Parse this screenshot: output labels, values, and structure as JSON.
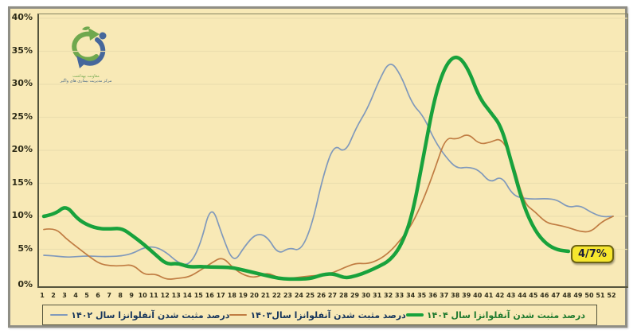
{
  "annotation": {
    "text": "4/7%",
    "bg": "#f6e62e",
    "border": "#6d6414",
    "text_color": "#1b1b38"
  },
  "logo": {
    "line1": "معاونت بهداشت",
    "line2": "مرکز مدیریت بیماری های واگیر",
    "green": "#6fa84e",
    "blue": "#46679b"
  },
  "legend": [
    {
      "label": "درصد مثبت شدن آنفلوانزا سال ۱۴۰۴",
      "color": "#18a23c",
      "text_color": "#1f7a2e",
      "thickness": 4
    },
    {
      "label": "درصد مثبت شدن آنفلوانزا سال۱۴۰۳",
      "color": "#c07c42",
      "text_color": "#17365c",
      "thickness": 2
    },
    {
      "label": "درصد مثبت شدن آنفلوانزا سال ۱۴۰۲",
      "color": "#8099bb",
      "text_color": "#17365c",
      "thickness": 2
    }
  ],
  "chart_data": {
    "type": "line",
    "title": "",
    "xlabel": "",
    "ylabel": "",
    "ylim": [
      0,
      40
    ],
    "grid": true,
    "grid_color": "#ecdfae",
    "background": "#f8e9b6",
    "legend_position": "bottom",
    "y_ticks": [
      "0%",
      "5%",
      "10%",
      "15%",
      "20%",
      "25%",
      "30%",
      "35%",
      "40%"
    ],
    "x_ticks": [
      1,
      2,
      3,
      4,
      5,
      6,
      7,
      8,
      9,
      10,
      11,
      12,
      13,
      14,
      15,
      16,
      17,
      18,
      19,
      20,
      21,
      22,
      23,
      24,
      25,
      26,
      27,
      28,
      29,
      30,
      31,
      32,
      33,
      34,
      35,
      36,
      37,
      38,
      39,
      40,
      41,
      42,
      43,
      44,
      45,
      46,
      47,
      48,
      49,
      50,
      51,
      52
    ],
    "series": [
      {
        "name": "درصد مثبت شدن آنفلوانزا سال ۱۴۰۲",
        "short_name": "1402",
        "color": "#8099bb",
        "width": 1.7,
        "values": [
          4.1,
          4.0,
          3.8,
          3.9,
          4.0,
          3.9,
          3.9,
          4.0,
          4.4,
          5.3,
          5.4,
          4.5,
          3.0,
          2.5,
          5.5,
          12.1,
          7.0,
          2.8,
          5.5,
          7.4,
          7.0,
          4.2,
          5.3,
          4.7,
          8.5,
          16.0,
          21.0,
          19.5,
          23.5,
          26.3,
          30.5,
          33.7,
          31.4,
          27.0,
          25.2,
          21.5,
          19.0,
          17.2,
          17.5,
          17.0,
          15.0,
          16.2,
          13.2,
          12.7,
          12.6,
          12.7,
          12.5,
          11.3,
          11.7,
          10.6,
          9.9,
          10.0
        ]
      },
      {
        "name": "درصد مثبت شدن آنفلوانزا سال۱۴۰۳",
        "short_name": "1403",
        "color": "#c07c42",
        "width": 1.7,
        "values": [
          8.0,
          8.3,
          6.6,
          5.3,
          4.0,
          2.8,
          2.5,
          2.5,
          2.7,
          1.1,
          1.3,
          0.4,
          0.6,
          0.8,
          1.8,
          2.9,
          3.9,
          2.1,
          1.0,
          0.7,
          1.5,
          0.7,
          0.6,
          0.8,
          1.0,
          1.1,
          1.5,
          2.3,
          2.9,
          2.8,
          3.4,
          4.6,
          6.5,
          8.8,
          12.5,
          17.0,
          22.0,
          21.6,
          22.6,
          20.9,
          21.2,
          21.9,
          18.5,
          12.0,
          10.7,
          9.0,
          8.7,
          8.3,
          7.7,
          7.6,
          9.2,
          10.0
        ]
      },
      {
        "name": "درصد مثبت شدن آنفلوانزا سال ۱۴۰۴",
        "short_name": "1404",
        "color": "#18a23c",
        "width": 4.5,
        "values": [
          10.0,
          10.3,
          11.7,
          9.6,
          8.6,
          8.1,
          8.1,
          8.2,
          7.0,
          5.7,
          4.2,
          2.7,
          2.9,
          2.3,
          2.4,
          2.3,
          2.3,
          2.2,
          1.8,
          1.4,
          1.0,
          0.6,
          0.5,
          0.5,
          0.6,
          1.2,
          1.3,
          0.6,
          1.0,
          1.6,
          2.4,
          3.3,
          5.5,
          10.0,
          19.0,
          28.0,
          33.0,
          34.5,
          32.5,
          28.0,
          25.8,
          23.6,
          17.5,
          11.5,
          7.8,
          5.8,
          4.9,
          4.7,
          null,
          null,
          null,
          null
        ]
      }
    ],
    "annotations": [
      {
        "text": "4/7%",
        "week": 48,
        "value": 4.7
      }
    ]
  }
}
